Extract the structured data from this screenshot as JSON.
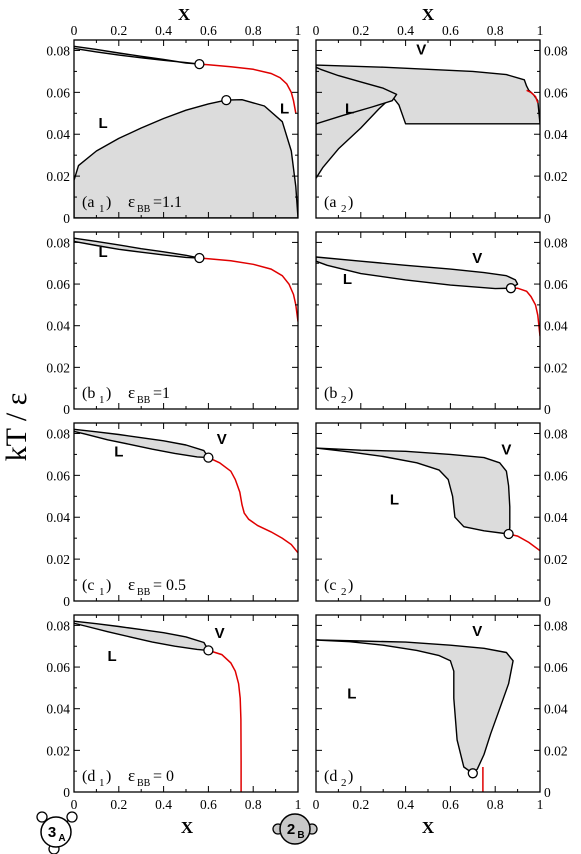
{
  "figure": {
    "ylabel": "kT / ε",
    "xlabel": "X",
    "molecule_a": {
      "digit": "3",
      "sub": "A"
    },
    "molecule_b": {
      "digit": "2",
      "sub": "B"
    },
    "colors": {
      "phase_fill": "#dcdcdc",
      "boundary": "#000000",
      "critical_line": "#e00000",
      "point_fill": "#ffffff"
    }
  },
  "chart_data": [
    {
      "type": "area",
      "id": "a1",
      "panel_label": "(a",
      "panel_sub": "1",
      "panel_tail": ")",
      "eps_value": "=1.1",
      "xlim": [
        0,
        1
      ],
      "ylim": [
        0,
        0.085
      ],
      "xticks": [
        "0",
        "0.2",
        "0.4",
        "0.6",
        "0.8",
        "1"
      ],
      "yticks": [
        "0",
        "0.02",
        "0.04",
        "0.06",
        "0.08"
      ],
      "regions": [
        {
          "x": [
            0.0,
            0.1,
            0.2,
            0.3,
            0.4,
            0.5,
            0.56,
            0.5,
            0.4,
            0.3,
            0.2,
            0.1,
            0.0
          ],
          "y": [
            0.082,
            0.0805,
            0.0788,
            0.0772,
            0.0757,
            0.074,
            0.0735,
            0.0742,
            0.0753,
            0.0765,
            0.0778,
            0.0793,
            0.081
          ]
        },
        {
          "x": [
            0.0,
            0.02,
            0.1,
            0.2,
            0.3,
            0.4,
            0.5,
            0.6,
            0.68,
            0.75,
            0.85,
            0.93,
            0.97,
            0.99,
            1.0,
            0.0
          ],
          "y": [
            0.018,
            0.025,
            0.032,
            0.038,
            0.043,
            0.0475,
            0.0515,
            0.0545,
            0.0563,
            0.0565,
            0.0535,
            0.046,
            0.032,
            0.015,
            0.0,
            0.0
          ]
        }
      ],
      "red_line": {
        "x": [
          0.56,
          0.6,
          0.7,
          0.8,
          0.88,
          0.92,
          0.95,
          0.97,
          0.98,
          0.99
        ],
        "y": [
          0.0735,
          0.0732,
          0.0722,
          0.071,
          0.069,
          0.067,
          0.064,
          0.06,
          0.056,
          0.05
        ]
      },
      "critical_points": [
        {
          "x": 0.56,
          "y": 0.0735
        },
        {
          "x": 0.68,
          "y": 0.0563
        }
      ],
      "labels": [
        {
          "text": "L",
          "x": 0.13,
          "y": 0.043
        },
        {
          "text": "L",
          "x": 0.94,
          "y": 0.05
        }
      ]
    },
    {
      "type": "area",
      "id": "a2",
      "panel_label": "(a",
      "panel_sub": "2",
      "panel_tail": ")",
      "eps_value": "",
      "xlim": [
        0,
        1
      ],
      "ylim": [
        0,
        0.085
      ],
      "xticks": [
        "0",
        "0.2",
        "0.4",
        "0.6",
        "0.8",
        "1"
      ],
      "yticks": [
        "0",
        "0.02",
        "0.04",
        "0.06",
        "0.08"
      ],
      "regions": [
        {
          "x": [
            0.0,
            0.3,
            0.5,
            0.7,
            0.85,
            0.93,
            0.94,
            0.95,
            0.97,
            0.99,
            1.0,
            0.99,
            0.97,
            0.95,
            0.93,
            0.9,
            0.8,
            0.7,
            0.6,
            0.5,
            0.45,
            0.4,
            0.37,
            0.34,
            0.28,
            0.2,
            0.1,
            0.03,
            0.0
          ],
          "y": [
            0.073,
            0.072,
            0.071,
            0.07,
            0.0685,
            0.066,
            0.063,
            0.061,
            0.059,
            0.056,
            0.045,
            0.045,
            0.045,
            0.045,
            0.045,
            0.045,
            0.045,
            0.045,
            0.045,
            0.045,
            0.045,
            0.045,
            0.054,
            0.058,
            0.052,
            0.043,
            0.033,
            0.024,
            0.019
          ]
        },
        {
          "x": [
            0.0,
            0.02,
            0.1,
            0.2,
            0.3,
            0.36,
            0.34,
            0.25,
            0.12,
            0.0
          ],
          "y": [
            0.072,
            0.071,
            0.068,
            0.065,
            0.062,
            0.059,
            0.056,
            0.053,
            0.049,
            0.045
          ]
        }
      ],
      "red_line": {
        "x": [
          0.94,
          0.96,
          0.98,
          0.99
        ],
        "y": [
          0.061,
          0.06,
          0.058,
          0.055
        ]
      },
      "critical_points": [],
      "labels": [
        {
          "text": "V",
          "x": 0.47,
          "y": 0.078
        },
        {
          "text": "L",
          "x": 0.15,
          "y": 0.05
        }
      ]
    },
    {
      "type": "area",
      "id": "b1",
      "panel_label": "(b",
      "panel_sub": "1",
      "panel_tail": ")",
      "eps_value": "=1",
      "xlim": [
        0,
        1
      ],
      "ylim": [
        0,
        0.085
      ],
      "xticks": [
        "0",
        "0.2",
        "0.4",
        "0.6",
        "0.8",
        "1"
      ],
      "yticks": [
        "0",
        "0.02",
        "0.04",
        "0.06",
        "0.08"
      ],
      "regions": [
        {
          "x": [
            0.0,
            0.1,
            0.2,
            0.3,
            0.4,
            0.5,
            0.56,
            0.5,
            0.4,
            0.3,
            0.2,
            0.1,
            0.0
          ],
          "y": [
            0.082,
            0.0805,
            0.0788,
            0.077,
            0.0755,
            0.0738,
            0.0725,
            0.0728,
            0.074,
            0.0753,
            0.0767,
            0.0785,
            0.0805
          ]
        }
      ],
      "red_line": {
        "x": [
          0.56,
          0.6,
          0.7,
          0.8,
          0.88,
          0.93,
          0.96,
          0.98,
          0.99,
          1.0
        ],
        "y": [
          0.0725,
          0.0722,
          0.0712,
          0.0695,
          0.0672,
          0.064,
          0.06,
          0.055,
          0.05,
          0.042
        ]
      },
      "critical_points": [
        {
          "x": 0.56,
          "y": 0.0725
        }
      ],
      "labels": [
        {
          "text": "L",
          "x": 0.13,
          "y": 0.073
        }
      ]
    },
    {
      "type": "area",
      "id": "b2",
      "panel_label": "(b",
      "panel_sub": "2",
      "panel_tail": ")",
      "eps_value": "",
      "xlim": [
        0,
        1
      ],
      "ylim": [
        0,
        0.085
      ],
      "xticks": [
        "0",
        "0.2",
        "0.4",
        "0.6",
        "0.8",
        "1"
      ],
      "yticks": [
        "0",
        "0.02",
        "0.04",
        "0.06",
        "0.08"
      ],
      "regions": [
        {
          "x": [
            0.0,
            0.2,
            0.4,
            0.6,
            0.75,
            0.85,
            0.89,
            0.9,
            0.87,
            0.8,
            0.6,
            0.4,
            0.2,
            0.05,
            0.0
          ],
          "y": [
            0.073,
            0.071,
            0.069,
            0.0672,
            0.0655,
            0.064,
            0.062,
            0.06,
            0.058,
            0.0578,
            0.0595,
            0.062,
            0.065,
            0.069,
            0.071
          ]
        }
      ],
      "red_line": {
        "x": [
          0.87,
          0.9,
          0.94,
          0.96,
          0.98,
          0.99,
          1.0
        ],
        "y": [
          0.058,
          0.058,
          0.0565,
          0.054,
          0.05,
          0.045,
          0.035
        ]
      },
      "critical_points": [
        {
          "x": 0.87,
          "y": 0.058
        }
      ],
      "labels": [
        {
          "text": "V",
          "x": 0.72,
          "y": 0.07
        },
        {
          "text": "L",
          "x": 0.14,
          "y": 0.06
        }
      ]
    },
    {
      "type": "area",
      "id": "c1",
      "panel_label": "(c",
      "panel_sub": "1",
      "panel_tail": ")",
      "eps_value": "= 0.5",
      "xlim": [
        0,
        1
      ],
      "ylim": [
        0,
        0.085
      ],
      "xticks": [
        "0",
        "0.2",
        "0.4",
        "0.6",
        "0.8",
        "1"
      ],
      "yticks": [
        "0",
        "0.02",
        "0.04",
        "0.06",
        "0.08"
      ],
      "regions": [
        {
          "x": [
            0.0,
            0.1,
            0.2,
            0.3,
            0.4,
            0.5,
            0.58,
            0.6,
            0.55,
            0.45,
            0.35,
            0.25,
            0.15,
            0.05,
            0.0
          ],
          "y": [
            0.082,
            0.0808,
            0.0795,
            0.078,
            0.0765,
            0.0745,
            0.0718,
            0.0685,
            0.0688,
            0.0705,
            0.0725,
            0.0748,
            0.077,
            0.0797,
            0.081
          ]
        }
      ],
      "red_line": {
        "x": [
          0.6,
          0.65,
          0.7,
          0.72,
          0.74,
          0.75,
          0.76,
          0.78,
          0.82,
          0.88,
          0.93,
          0.97,
          1.0
        ],
        "y": [
          0.0685,
          0.066,
          0.062,
          0.058,
          0.052,
          0.046,
          0.042,
          0.039,
          0.036,
          0.033,
          0.03,
          0.027,
          0.023
        ]
      },
      "critical_points": [
        {
          "x": 0.6,
          "y": 0.0685
        }
      ],
      "labels": [
        {
          "text": "L",
          "x": 0.2,
          "y": 0.069
        },
        {
          "text": "V",
          "x": 0.66,
          "y": 0.075
        }
      ]
    },
    {
      "type": "area",
      "id": "c2",
      "panel_label": "(c",
      "panel_sub": "2",
      "panel_tail": ")",
      "eps_value": "",
      "xlim": [
        0,
        1
      ],
      "ylim": [
        0,
        0.085
      ],
      "xticks": [
        "0",
        "0.2",
        "0.4",
        "0.6",
        "0.8",
        "1"
      ],
      "yticks": [
        "0",
        "0.02",
        "0.04",
        "0.06",
        "0.08"
      ],
      "regions": [
        {
          "x": [
            0.0,
            0.2,
            0.4,
            0.6,
            0.75,
            0.82,
            0.85,
            0.86,
            0.865,
            0.865,
            0.86,
            0.75,
            0.66,
            0.62,
            0.61,
            0.59,
            0.55,
            0.45,
            0.3,
            0.15,
            0.0
          ],
          "y": [
            0.073,
            0.072,
            0.0715,
            0.07,
            0.0685,
            0.066,
            0.062,
            0.055,
            0.045,
            0.035,
            0.032,
            0.0335,
            0.0355,
            0.04,
            0.05,
            0.058,
            0.0625,
            0.066,
            0.069,
            0.0712,
            0.073
          ]
        }
      ],
      "red_line": {
        "x": [
          0.86,
          0.9,
          0.95,
          1.0
        ],
        "y": [
          0.032,
          0.031,
          0.028,
          0.024
        ]
      },
      "critical_points": [
        {
          "x": 0.86,
          "y": 0.032
        }
      ],
      "labels": [
        {
          "text": "V",
          "x": 0.85,
          "y": 0.07
        },
        {
          "text": "L",
          "x": 0.35,
          "y": 0.046
        }
      ]
    },
    {
      "type": "area",
      "id": "d1",
      "panel_label": "(d",
      "panel_sub": "1",
      "panel_tail": ")",
      "eps_value": "= 0",
      "xlim": [
        0,
        1
      ],
      "ylim": [
        0,
        0.085
      ],
      "xticks": [
        "0",
        "0.2",
        "0.4",
        "0.6",
        "0.8",
        "1"
      ],
      "yticks": [
        "0",
        "0.02",
        "0.04",
        "0.06",
        "0.08"
      ],
      "regions": [
        {
          "x": [
            0.0,
            0.1,
            0.2,
            0.3,
            0.4,
            0.5,
            0.58,
            0.6,
            0.55,
            0.45,
            0.35,
            0.25,
            0.15,
            0.05,
            0.0
          ],
          "y": [
            0.082,
            0.0808,
            0.0795,
            0.078,
            0.0765,
            0.0745,
            0.0718,
            0.068,
            0.0685,
            0.07,
            0.072,
            0.0745,
            0.077,
            0.0797,
            0.081
          ]
        }
      ],
      "red_line": {
        "x": [
          0.6,
          0.66,
          0.7,
          0.72,
          0.735,
          0.742,
          0.745,
          0.746,
          0.746
        ],
        "y": [
          0.068,
          0.066,
          0.062,
          0.058,
          0.052,
          0.045,
          0.035,
          0.015,
          0.0
        ]
      },
      "critical_points": [
        {
          "x": 0.6,
          "y": 0.068
        }
      ],
      "labels": [
        {
          "text": "L",
          "x": 0.17,
          "y": 0.063
        },
        {
          "text": "V",
          "x": 0.65,
          "y": 0.074
        }
      ]
    },
    {
      "type": "area",
      "id": "d2",
      "panel_label": "(d",
      "panel_sub": "2",
      "panel_tail": ")",
      "eps_value": "",
      "xlim": [
        0,
        1
      ],
      "ylim": [
        0,
        0.085
      ],
      "xticks": [
        "0",
        "0.2",
        "0.4",
        "0.6",
        "0.8",
        "1"
      ],
      "yticks": [
        "0",
        "0.02",
        "0.04",
        "0.06",
        "0.08"
      ],
      "regions": [
        {
          "x": [
            0.0,
            0.2,
            0.4,
            0.6,
            0.75,
            0.85,
            0.88,
            0.86,
            0.82,
            0.78,
            0.75,
            0.72,
            0.7,
            0.66,
            0.63,
            0.615,
            0.615,
            0.6,
            0.55,
            0.45,
            0.3,
            0.15,
            0.0
          ],
          "y": [
            0.073,
            0.0725,
            0.072,
            0.0705,
            0.069,
            0.067,
            0.063,
            0.052,
            0.04,
            0.028,
            0.018,
            0.011,
            0.009,
            0.012,
            0.025,
            0.045,
            0.058,
            0.063,
            0.0655,
            0.068,
            0.0705,
            0.0722,
            0.073
          ]
        }
      ],
      "red_line": {
        "x": [
          0.745,
          0.745
        ],
        "y": [
          0.012,
          0.0
        ]
      },
      "critical_points": [
        {
          "x": 0.7,
          "y": 0.009
        }
      ],
      "labels": [
        {
          "text": "V",
          "x": 0.72,
          "y": 0.075
        },
        {
          "text": "L",
          "x": 0.16,
          "y": 0.045
        }
      ]
    }
  ]
}
